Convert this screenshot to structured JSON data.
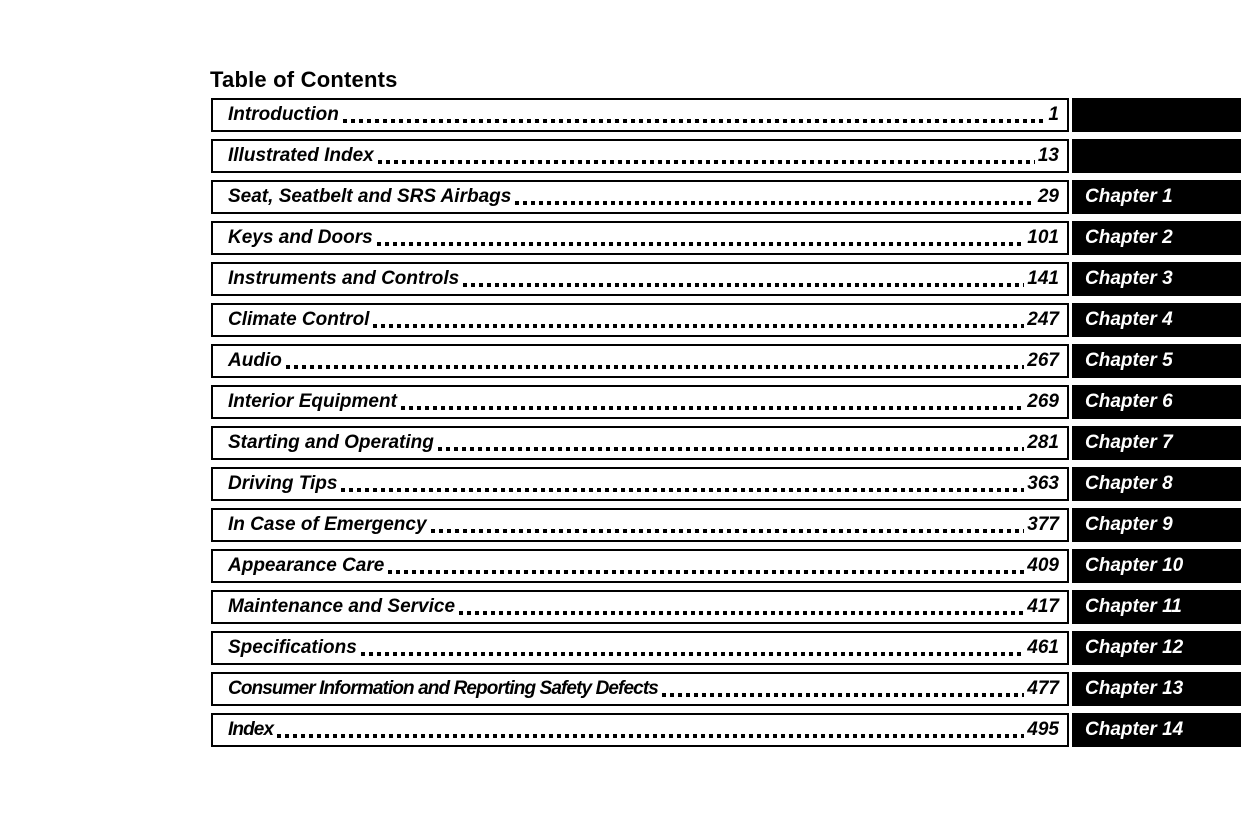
{
  "page": {
    "title": "Table of Contents"
  },
  "colors": {
    "ink": "#000000",
    "paper": "#ffffff",
    "tab_background": "#000000",
    "tab_text": "#ffffff"
  },
  "toc": {
    "rows": [
      {
        "title": "Introduction",
        "page": "1",
        "chapter": ""
      },
      {
        "title": "Illustrated Index",
        "page": "13",
        "chapter": ""
      },
      {
        "title": "Seat, Seatbelt and SRS Airbags",
        "page": "29",
        "chapter": "Chapter 1"
      },
      {
        "title": "Keys and Doors",
        "page": "101",
        "chapter": "Chapter 2"
      },
      {
        "title": "Instruments and Controls",
        "page": "141",
        "chapter": "Chapter 3"
      },
      {
        "title": "Climate Control",
        "page": "247",
        "chapter": "Chapter 4"
      },
      {
        "title": "Audio",
        "page": "267",
        "chapter": "Chapter 5"
      },
      {
        "title": "Interior Equipment",
        "page": "269",
        "chapter": "Chapter 6"
      },
      {
        "title": "Starting and Operating",
        "page": "281",
        "chapter": "Chapter 7"
      },
      {
        "title": "Driving Tips",
        "page": "363",
        "chapter": "Chapter 8"
      },
      {
        "title": "In Case of Emergency",
        "page": "377",
        "chapter": "Chapter 9"
      },
      {
        "title": "Appearance Care",
        "page": "409",
        "chapter": "Chapter 10"
      },
      {
        "title": "Maintenance and Service",
        "page": "417",
        "chapter": "Chapter 11"
      },
      {
        "title": "Specifications",
        "page": "461",
        "chapter": "Chapter 12"
      },
      {
        "title": "Consumer Information and Reporting Safety Defects",
        "page": "477",
        "chapter": "Chapter 13"
      },
      {
        "title": "Index",
        "page": "495",
        "chapter": "Chapter 14"
      }
    ]
  }
}
